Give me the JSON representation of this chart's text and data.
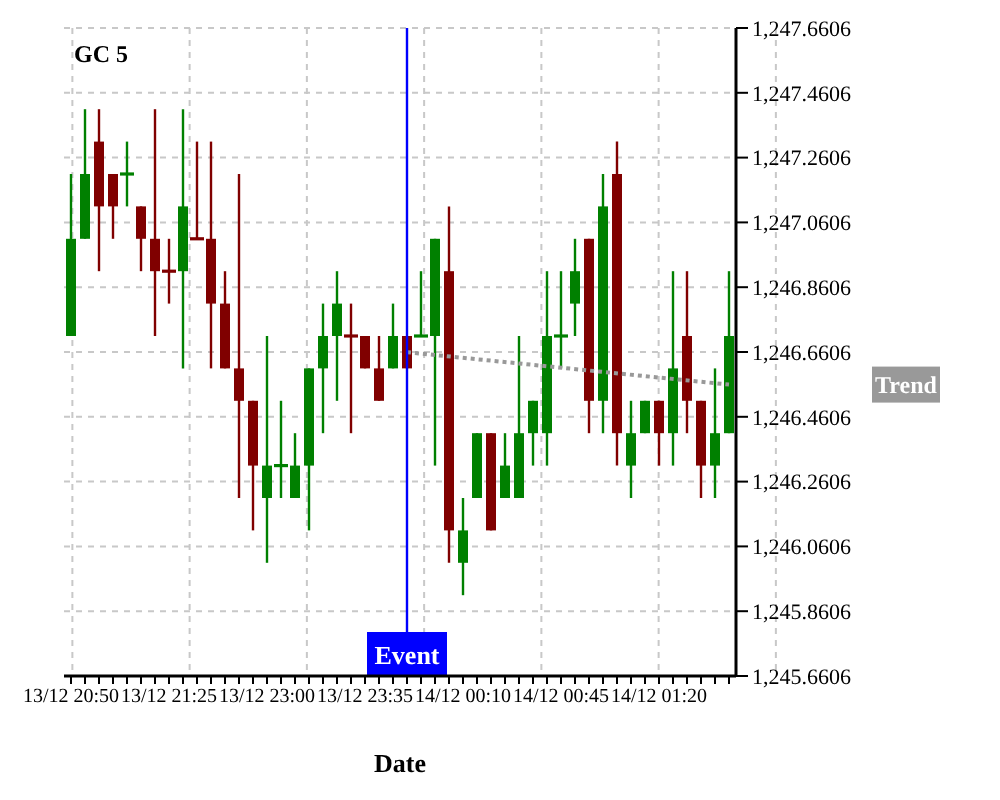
{
  "chart_data": {
    "type": "candlestick",
    "title": "GC 5",
    "xlabel": "Date",
    "categories": [
      "13/12 20:50",
      null,
      null,
      null,
      null,
      null,
      null,
      "13/12 21:25",
      null,
      null,
      null,
      null,
      null,
      null,
      "13/12 23:00",
      null,
      null,
      null,
      null,
      null,
      null,
      "13/12 23:35",
      null,
      null,
      null,
      null,
      null,
      null,
      "14/12 00:10",
      null,
      null,
      null,
      null,
      null,
      null,
      "14/12 00:45",
      null,
      null,
      null,
      null,
      null,
      null,
      "14/12 01:20",
      null,
      null,
      null,
      null,
      null
    ],
    "ohlc": [
      [
        1246.71,
        1247.21,
        1246.71,
        1247.01
      ],
      [
        1247.01,
        1247.41,
        1247.01,
        1247.21
      ],
      [
        1247.31,
        1247.41,
        1246.91,
        1247.11
      ],
      [
        1247.21,
        1247.21,
        1247.01,
        1247.11
      ],
      [
        1247.21,
        1247.31,
        1247.11,
        1247.21
      ],
      [
        1247.11,
        1247.11,
        1246.91,
        1247.01
      ],
      [
        1247.01,
        1247.41,
        1246.71,
        1246.91
      ],
      [
        1246.91,
        1247.01,
        1246.81,
        1246.91
      ],
      [
        1246.91,
        1247.41,
        1246.61,
        1247.11
      ],
      [
        1247.01,
        1247.31,
        1247.01,
        1247.01
      ],
      [
        1247.01,
        1247.31,
        1246.61,
        1246.81
      ],
      [
        1246.81,
        1246.91,
        1246.61,
        1246.61
      ],
      [
        1246.61,
        1247.21,
        1246.21,
        1246.51
      ],
      [
        1246.51,
        1246.51,
        1246.11,
        1246.31
      ],
      [
        1246.21,
        1246.71,
        1246.01,
        1246.31
      ],
      [
        1246.31,
        1246.51,
        1246.21,
        1246.31
      ],
      [
        1246.21,
        1246.41,
        1246.21,
        1246.31
      ],
      [
        1246.31,
        1246.61,
        1246.11,
        1246.61
      ],
      [
        1246.61,
        1246.81,
        1246.41,
        1246.71
      ],
      [
        1246.71,
        1246.91,
        1246.51,
        1246.81
      ],
      [
        1246.71,
        1246.81,
        1246.41,
        1246.71
      ],
      [
        1246.71,
        1246.71,
        1246.61,
        1246.61
      ],
      [
        1246.61,
        1246.71,
        1246.51,
        1246.51
      ],
      [
        1246.61,
        1246.81,
        1246.61,
        1246.71
      ],
      [
        1246.71,
        1246.71,
        1246.61,
        1246.61
      ],
      [
        1246.71,
        1246.91,
        1246.71,
        1246.71
      ],
      [
        1246.71,
        1247.01,
        1246.31,
        1247.01
      ],
      [
        1246.91,
        1247.11,
        1246.01,
        1246.11
      ],
      [
        1246.01,
        1246.21,
        1245.91,
        1246.11
      ],
      [
        1246.21,
        1246.41,
        1246.21,
        1246.41
      ],
      [
        1246.41,
        1246.41,
        1246.11,
        1246.11
      ],
      [
        1246.21,
        1246.41,
        1246.21,
        1246.31
      ],
      [
        1246.21,
        1246.71,
        1246.21,
        1246.41
      ],
      [
        1246.41,
        1246.51,
        1246.31,
        1246.51
      ],
      [
        1246.41,
        1246.91,
        1246.31,
        1246.71
      ],
      [
        1246.71,
        1246.91,
        1246.61,
        1246.71
      ],
      [
        1246.81,
        1247.01,
        1246.71,
        1246.91
      ],
      [
        1247.01,
        1247.01,
        1246.41,
        1246.51
      ],
      [
        1246.51,
        1247.21,
        1246.41,
        1247.11
      ],
      [
        1247.21,
        1247.31,
        1246.31,
        1246.41
      ],
      [
        1246.31,
        1246.51,
        1246.21,
        1246.41
      ],
      [
        1246.41,
        1246.51,
        1246.41,
        1246.51
      ],
      [
        1246.51,
        1246.51,
        1246.31,
        1246.41
      ],
      [
        1246.41,
        1246.91,
        1246.31,
        1246.61
      ],
      [
        1246.71,
        1246.91,
        1246.41,
        1246.51
      ],
      [
        1246.51,
        1246.51,
        1246.21,
        1246.31
      ],
      [
        1246.31,
        1246.61,
        1246.21,
        1246.41
      ],
      [
        1246.41,
        1246.91,
        1246.41,
        1246.71
      ]
    ],
    "colors": [
      "#008000",
      "#008000",
      "#800000",
      "#800000",
      "#008000",
      "#800000",
      "#800000",
      "#800000",
      "#008000",
      "#800000",
      "#800000",
      "#800000",
      "#800000",
      "#800000",
      "#008000",
      "#008000",
      "#008000",
      "#008000",
      "#008000",
      "#008000",
      "#800000",
      "#800000",
      "#800000",
      "#008000",
      "#800000",
      "#008000",
      "#008000",
      "#800000",
      "#008000",
      "#008000",
      "#800000",
      "#008000",
      "#008000",
      "#008000",
      "#008000",
      "#008000",
      "#008000",
      "#800000",
      "#008000",
      "#800000",
      "#008000",
      "#008000",
      "#800000",
      "#008000",
      "#800000",
      "#800000",
      "#008000",
      "#008000"
    ],
    "series": [
      {
        "type": "line",
        "name": "Trend",
        "color": "#999999",
        "line_style": "dotted",
        "values": [
          null,
          null,
          null,
          null,
          null,
          null,
          null,
          null,
          null,
          null,
          null,
          null,
          null,
          null,
          null,
          null,
          null,
          null,
          null,
          null,
          null,
          null,
          null,
          null,
          1246.66,
          null,
          null,
          null,
          null,
          null,
          null,
          null,
          null,
          null,
          null,
          null,
          null,
          null,
          null,
          null,
          null,
          null,
          null,
          null,
          null,
          null,
          null,
          1246.56
        ]
      }
    ],
    "annotations": [
      "Event"
    ],
    "ylim": [
      1245.6606,
      1247.6606
    ],
    "yticks": [
      {
        "value": 1245.6606,
        "label": "1,245.6606"
      },
      {
        "value": 1245.8606,
        "label": "1,245.8606"
      },
      {
        "value": 1246.0606,
        "label": "1,246.0606"
      },
      {
        "value": 1246.2606,
        "label": "1,246.2606"
      },
      {
        "value": 1246.4606,
        "label": "1,246.4606"
      },
      {
        "value": 1246.6606,
        "label": "1,246.6606"
      },
      {
        "value": 1246.8606,
        "label": "1,246.8606"
      },
      {
        "value": 1247.0606,
        "label": "1,247.0606"
      },
      {
        "value": 1247.2606,
        "label": "1,247.2606"
      },
      {
        "value": 1247.4606,
        "label": "1,247.4606"
      },
      {
        "value": 1247.6606,
        "label": "1,247.6606"
      }
    ],
    "grid": true
  }
}
